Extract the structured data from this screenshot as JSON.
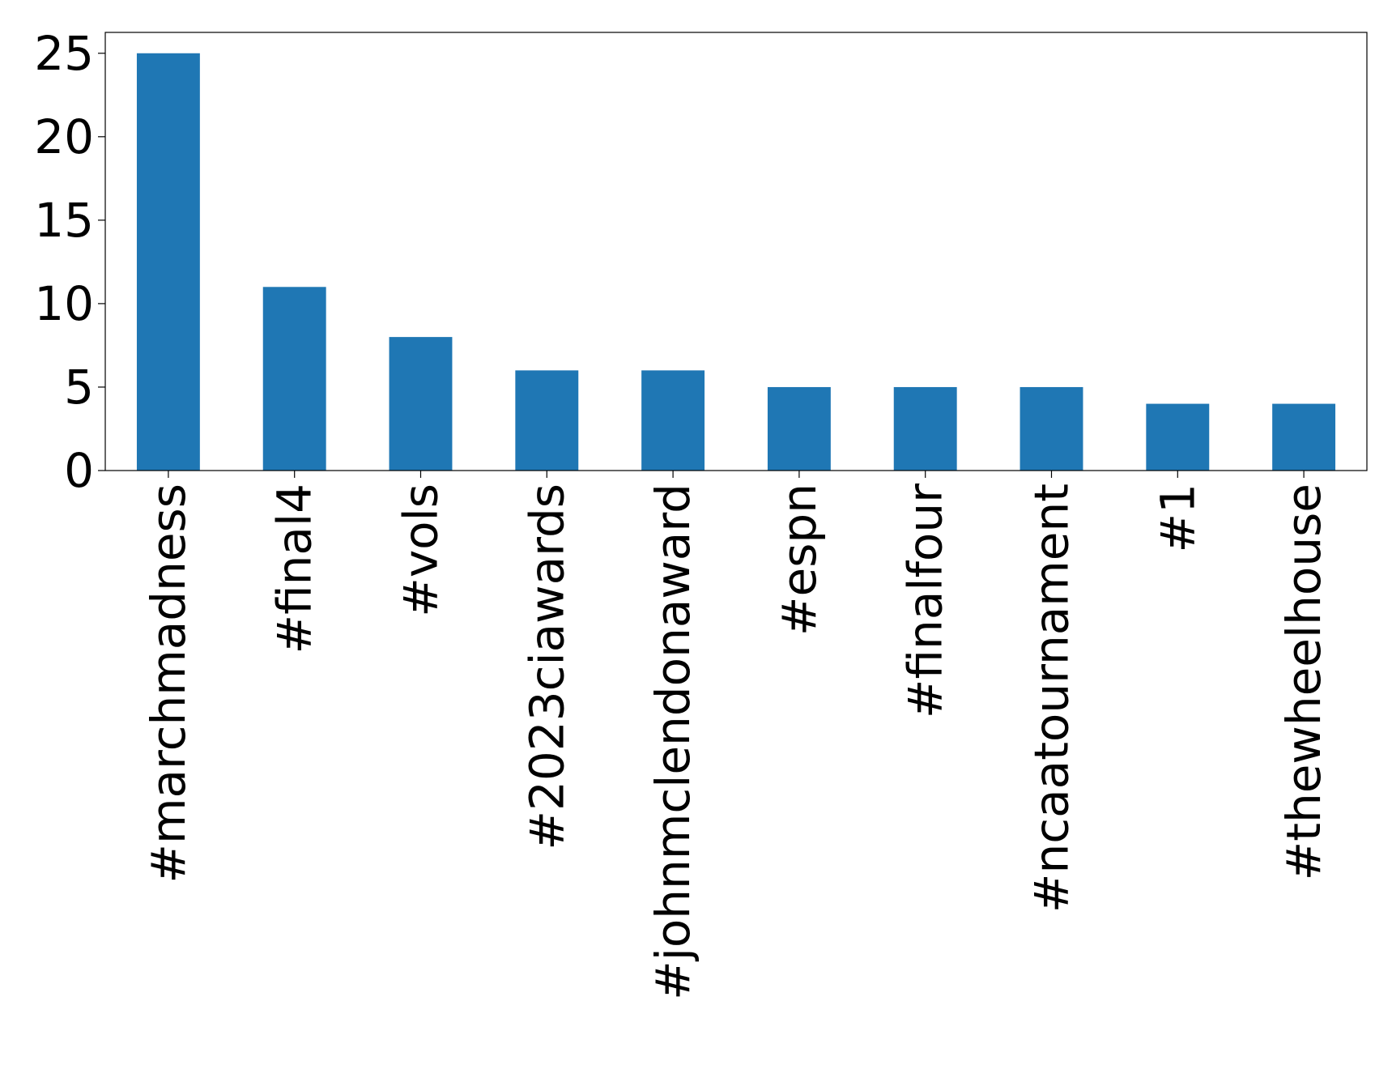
{
  "chart_data": {
    "type": "bar",
    "title": "",
    "xlabel": "",
    "ylabel": "",
    "categories": [
      "#marchmadness",
      "#final4",
      "#vols",
      "#2023ciawards",
      "#johnmclendonaward",
      "#espn",
      "#finalfour",
      "#ncaatournament",
      "#1",
      "#thewheelhouse"
    ],
    "values": [
      25,
      11,
      8,
      6,
      6,
      5,
      5,
      5,
      4,
      4
    ],
    "ylim": [
      0,
      26.25
    ],
    "yticks": [
      0,
      5,
      10,
      15,
      20,
      25
    ],
    "grid": false,
    "legend": "none",
    "colors": {
      "bar": "#1f77b4",
      "axis": "#000000",
      "background": "#ffffff"
    }
  }
}
